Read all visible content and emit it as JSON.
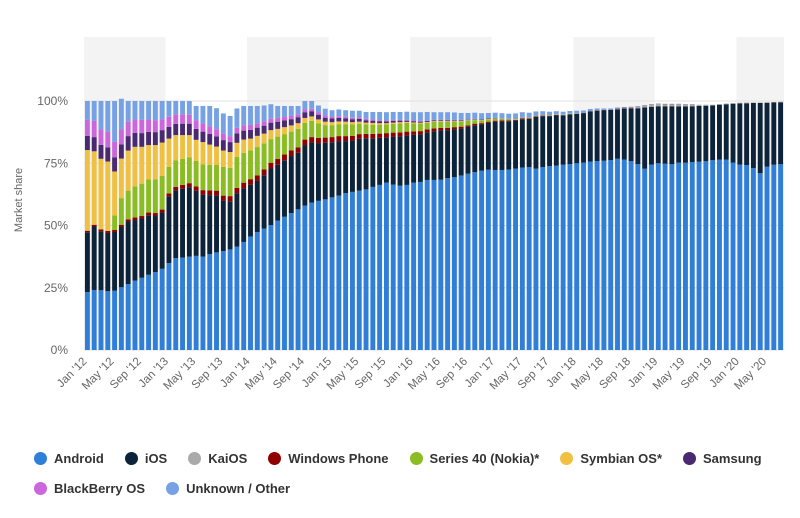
{
  "chart_data": {
    "type": "bar",
    "stacked": true,
    "ylabel": "Market share",
    "ylim": [
      0,
      100
    ],
    "yticks": [
      "0%",
      "25%",
      "50%",
      "75%",
      "100%"
    ],
    "grid": true,
    "legend_position": "bottom-left",
    "xtick_labels": [
      "Jan '12",
      "May '12",
      "Sep '12",
      "Jan '13",
      "May '13",
      "Sep '13",
      "Jan '14",
      "May '14",
      "Sep '14",
      "Jan '15",
      "May '15",
      "Sep '15",
      "Jan '16",
      "May '16",
      "Sep '16",
      "Jan '17",
      "May '17",
      "Sep '17",
      "Jan '18",
      "May '18",
      "Sep '18",
      "Jan '19",
      "May '19",
      "Sep '19",
      "Jan '20",
      "May '20"
    ],
    "categories": [
      "Jan '12",
      "Feb '12",
      "Mar '12",
      "Apr '12",
      "May '12",
      "Jun '12",
      "Jul '12",
      "Aug '12",
      "Sep '12",
      "Oct '12",
      "Nov '12",
      "Dec '12",
      "Jan '13",
      "Feb '13",
      "Mar '13",
      "Apr '13",
      "May '13",
      "Jun '13",
      "Jul '13",
      "Aug '13",
      "Sep '13",
      "Oct '13",
      "Nov '13",
      "Dec '13",
      "Jan '14",
      "Feb '14",
      "Mar '14",
      "Apr '14",
      "May '14",
      "Jun '14",
      "Jul '14",
      "Aug '14",
      "Sep '14",
      "Oct '14",
      "Nov '14",
      "Dec '14",
      "Jan '15",
      "Feb '15",
      "Mar '15",
      "Apr '15",
      "May '15",
      "Jun '15",
      "Jul '15",
      "Aug '15",
      "Sep '15",
      "Oct '15",
      "Nov '15",
      "Dec '15",
      "Jan '16",
      "Feb '16",
      "Mar '16",
      "Apr '16",
      "May '16",
      "Jun '16",
      "Jul '16",
      "Aug '16",
      "Sep '16",
      "Oct '16",
      "Nov '16",
      "Dec '16",
      "Jan '17",
      "Feb '17",
      "Mar '17",
      "Apr '17",
      "May '17",
      "Jun '17",
      "Jul '17",
      "Aug '17",
      "Sep '17",
      "Oct '17",
      "Nov '17",
      "Dec '17",
      "Jan '18",
      "Feb '18",
      "Mar '18",
      "Apr '18",
      "May '18",
      "Jun '18",
      "Jul '18",
      "Aug '18",
      "Sep '18",
      "Oct '18",
      "Nov '18",
      "Dec '18",
      "Jan '19",
      "Feb '19",
      "Mar '19",
      "Apr '19",
      "May '19",
      "Jun '19",
      "Jul '19",
      "Aug '19",
      "Sep '19",
      "Oct '19",
      "Nov '19",
      "Dec '19",
      "Jan '20",
      "Feb '20",
      "Mar '20",
      "Apr '20",
      "May '20",
      "Jun '20",
      "Jul '20"
    ],
    "series": [
      {
        "name": "Android",
        "color": "#2f7ed8",
        "values": [
          23.3,
          24.1,
          24,
          23.6,
          23.8,
          25.2,
          26.5,
          27.9,
          29,
          30.2,
          31.3,
          32.6,
          34.9,
          36.9,
          37.1,
          37.5,
          37.8,
          37.5,
          38.5,
          39.2,
          39.7,
          40.4,
          41.5,
          43.4,
          45.6,
          47.4,
          48.8,
          50.2,
          52,
          53.5,
          55,
          56.5,
          58,
          59.2,
          59.9,
          60.5,
          61.3,
          62,
          63,
          63.5,
          64,
          64.5,
          65.5,
          66.3,
          67.2,
          66.4,
          66,
          66.3,
          67.2,
          67.5,
          68.3,
          68.3,
          68.4,
          69,
          69.4,
          70.1,
          70.8,
          71.4,
          72,
          72.4,
          72.3,
          72.3,
          72.5,
          72.9,
          73.3,
          73.4,
          72.8,
          73.5,
          73.9,
          74.1,
          74.4,
          74.7,
          75,
          75.3,
          75.7,
          75.9,
          76,
          76.3,
          76.8,
          76.5,
          75.8,
          74.7,
          72.8,
          74.5,
          75,
          74.8,
          74.6,
          75.3,
          75.2,
          75.5,
          75.6,
          75.8,
          76.2,
          76.5,
          76.5,
          75.3,
          74.5,
          74.3,
          73.1,
          71,
          73.6,
          74.4,
          74.6
        ]
      },
      {
        "name": "iOS",
        "color": "#0d233a",
        "values": [
          24,
          25.5,
          23.7,
          23.4,
          23.6,
          24.2,
          25.1,
          24.3,
          23.8,
          23.9,
          22.5,
          22.6,
          26.7,
          27.2,
          27.7,
          27.9,
          26.2,
          24.9,
          23.7,
          22.8,
          20.3,
          19.3,
          21.5,
          21.6,
          20.8,
          20.5,
          21.4,
          22.7,
          22.4,
          22.7,
          22.9,
          22.7,
          24.3,
          24.1,
          23.2,
          22.7,
          22.1,
          21.9,
          20.9,
          20.6,
          20.8,
          20.5,
          19.5,
          18.9,
          18.2,
          19.3,
          19.8,
          19.9,
          19.2,
          19.1,
          19.1,
          19.6,
          19.8,
          19.3,
          19.3,
          18.9,
          18.8,
          18.9,
          18.6,
          18.8,
          19.4,
          19.5,
          19.4,
          19.2,
          19.4,
          19.4,
          20.8,
          20.4,
          20,
          20.1,
          19.8,
          19.9,
          19.8,
          19.8,
          20.1,
          20.2,
          20.3,
          20.1,
          19.9,
          20.5,
          21.3,
          22.4,
          24.6,
          23.2,
          22.9,
          23.1,
          23.3,
          22.5,
          22.6,
          22.4,
          22.4,
          22.3,
          22,
          22,
          22.2,
          23.6,
          24.5,
          24.8,
          26.1,
          28.2,
          25.7,
          25,
          24.9
        ]
      },
      {
        "name": "KaiOS",
        "color": "#aaaaaa",
        "values": [
          0,
          0,
          0,
          0,
          0,
          0,
          0,
          0,
          0,
          0,
          0,
          0,
          0,
          0,
          0,
          0,
          0,
          0,
          0,
          0,
          0,
          0,
          0,
          0,
          0,
          0,
          0,
          0,
          0,
          0,
          0,
          0,
          0,
          0,
          0,
          0,
          0,
          0,
          0,
          0,
          0,
          0,
          0,
          0,
          0,
          0,
          0,
          0,
          0,
          0,
          0,
          0,
          0,
          0,
          0,
          0,
          0,
          0,
          0,
          0,
          0,
          0,
          0,
          0,
          0,
          0,
          0,
          0,
          0,
          0,
          0,
          0,
          0,
          0,
          0,
          0,
          0,
          0,
          0.2,
          0.3,
          0.4,
          0.6,
          0.8,
          0.9,
          0.9,
          0.8,
          0.8,
          0.8,
          0.7,
          0.6,
          0.5,
          0.4,
          0.3,
          0.3,
          0.3,
          0.3,
          0.3,
          0.3,
          0.2,
          0.2,
          0.2,
          0.2,
          0.2
        ]
      },
      {
        "name": "Windows Phone",
        "color": "#910000",
        "values": [
          0.6,
          0.7,
          0.7,
          0.8,
          0.8,
          0.9,
          0.9,
          1,
          1,
          1.1,
          1.2,
          1.2,
          1.3,
          1.4,
          1.5,
          1.6,
          1.7,
          1.8,
          1.9,
          2,
          2,
          2.1,
          2.1,
          2.2,
          2.2,
          2.2,
          2.3,
          2.3,
          2.3,
          2.3,
          2.3,
          2.2,
          2.2,
          2.2,
          2.1,
          2.1,
          2.1,
          2,
          2,
          1.9,
          1.9,
          1.8,
          1.8,
          1.7,
          1.7,
          1.6,
          1.6,
          1.5,
          1.4,
          1.3,
          1.2,
          1.1,
          1,
          0.9,
          0.8,
          0.7,
          0.6,
          0.6,
          0.5,
          0.5,
          0.4,
          0.4,
          0.3,
          0.3,
          0.3,
          0.2,
          0.2,
          0.2,
          0.2,
          0.2,
          0.1,
          0.1,
          0.1,
          0.1,
          0.1,
          0.1,
          0.1,
          0.1,
          0.1,
          0.1,
          0.1,
          0.1,
          0.1,
          0.1,
          0.1,
          0.1,
          0.1,
          0.1,
          0.1,
          0.1,
          0,
          0,
          0,
          0,
          0,
          0,
          0,
          0,
          0,
          0,
          0,
          0,
          0
        ]
      },
      {
        "name": "Series 40 (Nokia)*",
        "color": "#8bbc21",
        "values": [
          0,
          0,
          0,
          0,
          5.8,
          10.7,
          11.5,
          12.5,
          13,
          13.3,
          13.5,
          13.5,
          10.7,
          10.6,
          10.5,
          10.3,
          10.2,
          10.3,
          10.2,
          10.3,
          11.5,
          11.4,
          12.4,
          12,
          11.6,
          11.4,
          10.5,
          9.5,
          9,
          8.2,
          7.5,
          7.4,
          6.7,
          6.5,
          5.8,
          5,
          4.8,
          4.8,
          4.8,
          4.6,
          4.2,
          3.8,
          3.7,
          3.6,
          3.5,
          3.5,
          3.6,
          3.5,
          3.2,
          3,
          2.7,
          2.6,
          2.5,
          2.4,
          2.3,
          2.1,
          1.9,
          1.4,
          1.1,
          0.9,
          0.7,
          0.6,
          0.4,
          0.3,
          0.2,
          0.2,
          0.2,
          0.1,
          0.1,
          0.1,
          0.1,
          0.1,
          0,
          0,
          0,
          0,
          0,
          0,
          0,
          0,
          0,
          0,
          0,
          0,
          0,
          0,
          0,
          0,
          0,
          0,
          0,
          0,
          0,
          0,
          0,
          0,
          0,
          0,
          0,
          0,
          0,
          0,
          0
        ]
      },
      {
        "name": "Symbian OS*",
        "color": "#f0c040",
        "values": [
          32.4,
          29.5,
          28.4,
          27.9,
          17.7,
          15.9,
          16.1,
          15.9,
          14.8,
          13.8,
          13.8,
          13.4,
          11.3,
          10.2,
          9.5,
          9,
          8.5,
          9,
          8.2,
          7.4,
          6.6,
          6.3,
          5.7,
          5.3,
          4.7,
          4.5,
          3.9,
          3.6,
          3.1,
          2.8,
          2.5,
          2.3,
          2,
          1.8,
          1.6,
          1.4,
          1.2,
          1.1,
          1,
          0.9,
          0.8,
          0.7,
          0.7,
          0.6,
          0.5,
          0.5,
          0.5,
          0.4,
          0.4,
          0.4,
          0.3,
          0.3,
          0.3,
          0.3,
          0.2,
          0.2,
          0.2,
          0.2,
          0.2,
          0.2,
          0.1,
          0.1,
          0.1,
          0.1,
          0.1,
          0.1,
          0.1,
          0.1,
          0.1,
          0.1,
          0.1,
          0.1,
          0.1,
          0,
          0,
          0,
          0,
          0,
          0,
          0,
          0,
          0,
          0,
          0,
          0,
          0,
          0,
          0,
          0,
          0,
          0,
          0,
          0,
          0,
          0,
          0,
          0,
          0,
          0,
          0,
          0,
          0,
          0
        ]
      },
      {
        "name": "Samsung",
        "color": "#492970",
        "values": [
          5.7,
          5.7,
          5.6,
          5.7,
          5.7,
          5.7,
          5.8,
          5.6,
          5.5,
          5.3,
          5.2,
          5,
          4.7,
          4.5,
          4.6,
          4.6,
          4.4,
          4.2,
          4.3,
          4.1,
          4.2,
          4,
          3.8,
          3.6,
          3.5,
          3.3,
          3.2,
          3,
          2.9,
          2.7,
          2.5,
          2.4,
          2.3,
          2.1,
          1.9,
          1.6,
          1.5,
          1.4,
          1.3,
          1.2,
          1.1,
          1,
          0.9,
          0.8,
          0.7,
          0.7,
          0.6,
          0.5,
          0.5,
          0.4,
          0.4,
          0.3,
          0.3,
          0.3,
          0.2,
          0.2,
          0.2,
          0.2,
          0.2,
          0.2,
          0.2,
          0.1,
          0.1,
          0.1,
          0.1,
          0.1,
          0.1,
          0.1,
          0,
          0,
          0,
          0,
          0,
          0,
          0,
          0,
          0,
          0,
          0,
          0,
          0,
          0,
          0,
          0,
          0,
          0,
          0,
          0,
          0,
          0,
          0,
          0,
          0,
          0,
          0,
          0,
          0,
          0,
          0,
          0,
          0,
          0,
          0
        ]
      },
      {
        "name": "BlackBerry OS",
        "color": "#cc66dd",
        "values": [
          6.4,
          6.5,
          6.2,
          6.3,
          6.2,
          6.1,
          5.8,
          5.5,
          5.3,
          5,
          4.8,
          4.4,
          4.1,
          3.9,
          3.8,
          3.6,
          3.5,
          3.3,
          3.1,
          2.9,
          2.6,
          2.4,
          2.2,
          2.1,
          2,
          1.8,
          1.7,
          1.6,
          1.5,
          1.4,
          1.3,
          1.2,
          1.1,
          1,
          0.9,
          0.9,
          0.8,
          0.7,
          0.7,
          0.6,
          0.6,
          0.5,
          0.5,
          0.4,
          0.4,
          0.4,
          0.3,
          0.3,
          0.3,
          0.3,
          0.2,
          0.2,
          0.2,
          0.2,
          0.2,
          0.2,
          0.1,
          0.1,
          0.1,
          0.1,
          0.1,
          0.1,
          0.1,
          0.1,
          0.1,
          0.1,
          0,
          0,
          0,
          0,
          0,
          0,
          0,
          0,
          0,
          0,
          0,
          0,
          0,
          0,
          0,
          0,
          0,
          0,
          0,
          0,
          0,
          0,
          0,
          0,
          0,
          0,
          0,
          0,
          0,
          0,
          0,
          0,
          0,
          0,
          0,
          0,
          0
        ]
      },
      {
        "name": "Unknown / Other",
        "color": "#77a1e5",
        "values": [
          7.6,
          8,
          11.4,
          12.3,
          16.4,
          12.2,
          8.3,
          7.3,
          7.6,
          7.4,
          7.7,
          7.3,
          6.3,
          5.3,
          5.3,
          5.5,
          5.7,
          7,
          8.1,
          8.4,
          8.1,
          8.1,
          7.8,
          7.8,
          7.6,
          6.9,
          6.4,
          5.8,
          4.8,
          4.4,
          4,
          3.3,
          3.4,
          3.1,
          2.8,
          2.7,
          2.5,
          2.7,
          2.6,
          2.8,
          2.7,
          2.8,
          3,
          3.3,
          3.3,
          3.2,
          3.2,
          3.3,
          3.3,
          3.5,
          3.4,
          3.1,
          3,
          3.1,
          3,
          2.8,
          2.6,
          2.5,
          2.4,
          2.1,
          2.1,
          2,
          2,
          2,
          2,
          1.8,
          1.6,
          1.5,
          1.4,
          1.3,
          1.2,
          1.1,
          1.1,
          1,
          0.9,
          0.8,
          0.6,
          0.5,
          0.4,
          0.2,
          0.1,
          0.1,
          0.1,
          0.1,
          0.1,
          0.1,
          0.1,
          0.2,
          0.1,
          0.1,
          0,
          0,
          0,
          0,
          0,
          0,
          0,
          0,
          0,
          0,
          0,
          0,
          0
        ]
      }
    ]
  }
}
